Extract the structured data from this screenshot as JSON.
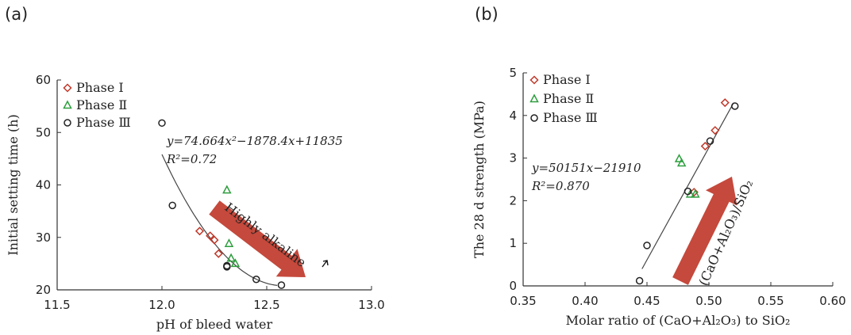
{
  "panel_a_label": "(a)",
  "panel_b_label": "(b)",
  "chart_data": [
    {
      "type": "scatter",
      "xlabel": "pH of bleed water",
      "ylabel": "Initial setting time (h)",
      "xlim": [
        11.5,
        13.0
      ],
      "ylim": [
        20,
        60
      ],
      "xticks": [
        "11.5",
        "12.0",
        "12.5",
        "13.0"
      ],
      "yticks": [
        "20",
        "30",
        "40",
        "50",
        "60"
      ],
      "grid": false,
      "legend_position": "top-left",
      "series": [
        {
          "name": "Phase Ⅰ",
          "marker": "diamond",
          "color": "#c0392b",
          "points": [
            [
              12.18,
              31.2
            ],
            [
              12.23,
              30.3
            ],
            [
              12.25,
              29.5
            ],
            [
              12.27,
              26.9
            ]
          ]
        },
        {
          "name": "Phase Ⅱ",
          "marker": "triangle",
          "color": "#2e9e3e",
          "points": [
            [
              12.31,
              39.0
            ],
            [
              12.32,
              28.8
            ],
            [
              12.33,
              26.0
            ],
            [
              12.35,
              25.0
            ]
          ]
        },
        {
          "name": "Phase Ⅲ",
          "marker": "circle",
          "color": "#222222",
          "points": [
            [
              12.0,
              51.8
            ],
            [
              12.05,
              36.1
            ],
            [
              12.31,
              24.6
            ],
            [
              12.31,
              24.4
            ],
            [
              12.45,
              22.0
            ],
            [
              12.57,
              20.9
            ]
          ]
        }
      ],
      "fit": {
        "equation": "y=74.664x²−1878.4x+11835",
        "r2": "R²=0.72",
        "coefficients": [
          74.664,
          -1878.4,
          11835
        ],
        "x_range": [
          12.0,
          12.55
        ]
      },
      "annotation": {
        "text": "Highly alkaline",
        "color": "#c0392b"
      }
    },
    {
      "type": "scatter",
      "xlabel": "Molar ratio of (CaO+Al₂O₃) to SiO₂",
      "ylabel": "The 28 d strength (MPa)",
      "xlim": [
        0.35,
        0.6
      ],
      "ylim": [
        0,
        5
      ],
      "xticks": [
        "0.35",
        "0.40",
        "0.45",
        "0.50",
        "0.55",
        "0.60"
      ],
      "yticks": [
        "0",
        "1",
        "2",
        "3",
        "4",
        "5"
      ],
      "grid": false,
      "legend_position": "top-left",
      "series": [
        {
          "name": "Phase Ⅰ",
          "marker": "diamond",
          "color": "#c0392b",
          "points": [
            [
              0.513,
              4.3
            ],
            [
              0.505,
              3.65
            ],
            [
              0.497,
              3.28
            ],
            [
              0.488,
              2.2
            ]
          ]
        },
        {
          "name": "Phase Ⅱ",
          "marker": "triangle",
          "color": "#2e9e3e",
          "points": [
            [
              0.476,
              2.98
            ],
            [
              0.478,
              2.88
            ],
            [
              0.485,
              2.15
            ],
            [
              0.489,
              2.15
            ]
          ]
        },
        {
          "name": "Phase Ⅲ",
          "marker": "circle",
          "color": "#222222",
          "points": [
            [
              0.521,
              4.22
            ],
            [
              0.501,
              3.4
            ],
            [
              0.483,
              2.22
            ],
            [
              0.45,
              0.95
            ],
            [
              0.444,
              0.12
            ]
          ]
        }
      ],
      "fit": {
        "equation": "y=50151x−21910",
        "r2": "R²=0.870",
        "x_range": [
          0.446,
          0.52
        ],
        "y_range": [
          0.4,
          4.3
        ]
      },
      "annotation": {
        "text": "(CaO+Al₂O₃)/SiO₂",
        "color": "#c0392b"
      }
    }
  ]
}
